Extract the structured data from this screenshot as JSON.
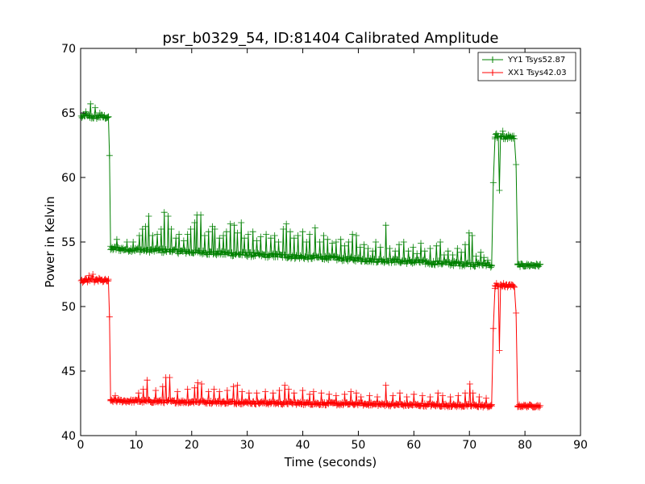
{
  "chart_data": {
    "type": "line",
    "title": "psr_b0329_54, ID:81404 Calibrated Amplitude",
    "xlabel": "Time (seconds)",
    "ylabel": "Power in Kelvin",
    "xlim": [
      0,
      90
    ],
    "ylim": [
      40,
      70
    ],
    "xticks": [
      "0",
      "10",
      "20",
      "30",
      "40",
      "50",
      "60",
      "70",
      "80",
      "90"
    ],
    "yticks": [
      "40",
      "45",
      "50",
      "55",
      "60",
      "65",
      "70"
    ],
    "grid": false,
    "legend_position": "top-right",
    "series": [
      {
        "name": "YY1 Tsys52.87",
        "color": "#008000",
        "segments": [
          {
            "x_start": 0.1,
            "x_end": 5.0,
            "base": 64.7,
            "noise": 0.18,
            "spikes": [
              [
                1.0,
                65.1
              ],
              [
                1.8,
                65.7
              ],
              [
                2.6,
                65.4
              ],
              [
                3.5,
                65.0
              ]
            ]
          },
          {
            "x": [
              5.0,
              5.2,
              5.4
            ],
            "y": [
              64.7,
              61.7,
              54.4
            ]
          },
          {
            "x_start": 5.4,
            "x_end": 74.0,
            "base_start": 54.5,
            "base_end": 53.2,
            "noise": 0.18,
            "spikes": [
              [
                6.5,
                55.2
              ],
              [
                8.3,
                55.0
              ],
              [
                9.5,
                55.0
              ],
              [
                10.6,
                55.5
              ],
              [
                11.1,
                56.0
              ],
              [
                11.7,
                56.2
              ],
              [
                12.2,
                57.0
              ],
              [
                13.0,
                55.5
              ],
              [
                13.8,
                55.6
              ],
              [
                14.5,
                56.0
              ],
              [
                15.1,
                57.3
              ],
              [
                15.7,
                57.0
              ],
              [
                16.3,
                56.0
              ],
              [
                17.1,
                55.3
              ],
              [
                17.7,
                55.6
              ],
              [
                18.5,
                55.1
              ],
              [
                19.2,
                55.6
              ],
              [
                19.8,
                56.0
              ],
              [
                20.5,
                56.5
              ],
              [
                21.0,
                57.1
              ],
              [
                21.6,
                57.1
              ],
              [
                22.3,
                55.5
              ],
              [
                23.0,
                55.8
              ],
              [
                23.7,
                56.2
              ],
              [
                24.2,
                56.0
              ],
              [
                25.0,
                55.3
              ],
              [
                25.7,
                55.5
              ],
              [
                26.3,
                55.8
              ],
              [
                27.0,
                56.4
              ],
              [
                27.6,
                56.3
              ],
              [
                28.2,
                55.7
              ],
              [
                28.9,
                56.5
              ],
              [
                29.5,
                55.3
              ],
              [
                30.2,
                55.6
              ],
              [
                31.0,
                55.8
              ],
              [
                31.7,
                55.1
              ],
              [
                32.4,
                55.4
              ],
              [
                33.4,
                55.6
              ],
              [
                34.2,
                55.3
              ],
              [
                34.9,
                55.5
              ],
              [
                35.7,
                55.0
              ],
              [
                36.5,
                56.0
              ],
              [
                37.0,
                56.4
              ],
              [
                37.7,
                55.8
              ],
              [
                38.4,
                55.3
              ],
              [
                39.2,
                55.5
              ],
              [
                40.0,
                55.8
              ],
              [
                40.7,
                55.0
              ],
              [
                41.3,
                55.6
              ],
              [
                42.2,
                56.1
              ],
              [
                43.0,
                55.0
              ],
              [
                43.7,
                55.5
              ],
              [
                44.5,
                55.2
              ],
              [
                45.3,
                54.9
              ],
              [
                46.0,
                55.0
              ],
              [
                46.8,
                55.2
              ],
              [
                47.6,
                54.7
              ],
              [
                48.2,
                55.0
              ],
              [
                48.9,
                55.6
              ],
              [
                49.7,
                55.5
              ],
              [
                50.4,
                54.6
              ],
              [
                51.0,
                54.8
              ],
              [
                51.8,
                54.5
              ],
              [
                52.6,
                54.3
              ],
              [
                53.2,
                55.0
              ],
              [
                54.0,
                54.6
              ],
              [
                55.0,
                56.3
              ],
              [
                55.7,
                54.5
              ],
              [
                56.6,
                54.3
              ],
              [
                57.4,
                54.8
              ],
              [
                58.2,
                55.0
              ],
              [
                59.0,
                54.3
              ],
              [
                59.8,
                54.6
              ],
              [
                60.6,
                54.1
              ],
              [
                61.3,
                54.9
              ],
              [
                62.0,
                54.3
              ],
              [
                63.0,
                54.5
              ],
              [
                64.0,
                54.7
              ],
              [
                64.8,
                55.0
              ],
              [
                65.4,
                54.0
              ],
              [
                66.2,
                54.3
              ],
              [
                67.0,
                54.0
              ],
              [
                67.8,
                54.5
              ],
              [
                68.5,
                54.2
              ],
              [
                69.2,
                54.8
              ],
              [
                70.0,
                55.7
              ],
              [
                70.5,
                55.5
              ],
              [
                71.2,
                53.9
              ],
              [
                72.0,
                54.2
              ],
              [
                72.6,
                53.8
              ],
              [
                73.3,
                53.6
              ]
            ]
          },
          {
            "x": [
              74.0,
              74.3,
              74.6
            ],
            "y": [
              53.2,
              59.6,
              63.0
            ]
          },
          {
            "x_start": 74.6,
            "x_end": 75.2,
            "base": 63.2,
            "noise": 0.2,
            "spikes": [
              [
                74.9,
                63.4
              ]
            ]
          },
          {
            "x": [
              75.2,
              75.4,
              75.6
            ],
            "y": [
              63.2,
              59.0,
              63.2
            ]
          },
          {
            "x_start": 75.6,
            "x_end": 78.1,
            "base": 63.1,
            "noise": 0.15,
            "spikes": [
              [
                76.0,
                63.6
              ],
              [
                77.0,
                63.3
              ]
            ]
          },
          {
            "x": [
              78.1,
              78.4,
              78.7
            ],
            "y": [
              63.0,
              61.0,
              53.3
            ]
          },
          {
            "x_start": 78.7,
            "x_end": 82.8,
            "base": 53.2,
            "noise": 0.12,
            "spikes": []
          }
        ]
      },
      {
        "name": "XX1 Tsys42.03",
        "color": "#ff0000",
        "segments": [
          {
            "x_start": 0.1,
            "x_end": 5.0,
            "base": 52.0,
            "noise": 0.15,
            "spikes": [
              [
                1.5,
                52.4
              ],
              [
                2.2,
                52.5
              ],
              [
                3.3,
                52.2
              ]
            ]
          },
          {
            "x": [
              5.0,
              5.2,
              5.4
            ],
            "y": [
              52.0,
              49.2,
              42.7
            ]
          },
          {
            "x_start": 5.4,
            "x_end": 74.0,
            "base_start": 42.7,
            "base_end": 42.3,
            "noise": 0.12,
            "spikes": [
              [
                6.2,
                43.1
              ],
              [
                10.5,
                43.3
              ],
              [
                11.3,
                43.6
              ],
              [
                12.0,
                44.3
              ],
              [
                13.5,
                43.5
              ],
              [
                14.8,
                43.8
              ],
              [
                15.3,
                44.5
              ],
              [
                16.0,
                44.5
              ],
              [
                17.4,
                43.4
              ],
              [
                19.3,
                43.6
              ],
              [
                20.5,
                43.7
              ],
              [
                21.1,
                44.1
              ],
              [
                21.8,
                44.0
              ],
              [
                23.0,
                43.4
              ],
              [
                24.0,
                43.6
              ],
              [
                25.0,
                43.4
              ],
              [
                26.4,
                43.5
              ],
              [
                27.5,
                43.8
              ],
              [
                28.2,
                43.9
              ],
              [
                29.0,
                43.4
              ],
              [
                30.3,
                43.3
              ],
              [
                31.7,
                43.3
              ],
              [
                33.3,
                43.4
              ],
              [
                34.6,
                43.3
              ],
              [
                35.8,
                43.5
              ],
              [
                36.8,
                43.9
              ],
              [
                37.5,
                43.6
              ],
              [
                38.5,
                43.3
              ],
              [
                40.0,
                43.5
              ],
              [
                41.2,
                43.2
              ],
              [
                42.0,
                43.4
              ],
              [
                43.4,
                43.3
              ],
              [
                44.8,
                43.2
              ],
              [
                46.0,
                43.1
              ],
              [
                47.5,
                43.2
              ],
              [
                48.7,
                43.4
              ],
              [
                49.6,
                43.3
              ],
              [
                50.5,
                43.0
              ],
              [
                52.0,
                43.1
              ],
              [
                53.4,
                43.0
              ],
              [
                55.0,
                43.9
              ],
              [
                56.2,
                43.1
              ],
              [
                57.5,
                43.3
              ],
              [
                58.8,
                43.0
              ],
              [
                60.0,
                43.2
              ],
              [
                61.5,
                43.1
              ],
              [
                63.0,
                43.0
              ],
              [
                64.4,
                43.3
              ],
              [
                65.2,
                43.1
              ],
              [
                66.6,
                43.0
              ],
              [
                68.0,
                43.1
              ],
              [
                69.2,
                43.3
              ],
              [
                70.1,
                44.0
              ],
              [
                70.6,
                43.3
              ],
              [
                71.8,
                43.0
              ],
              [
                73.0,
                42.9
              ]
            ]
          },
          {
            "x": [
              74.0,
              74.3,
              74.6
            ],
            "y": [
              42.3,
              48.3,
              51.4
            ]
          },
          {
            "x_start": 74.6,
            "x_end": 75.2,
            "base": 51.6,
            "noise": 0.15,
            "spikes": [
              [
                74.9,
                51.8
              ]
            ]
          },
          {
            "x": [
              75.2,
              75.4,
              75.6
            ],
            "y": [
              51.6,
              46.6,
              51.5
            ]
          },
          {
            "x_start": 75.6,
            "x_end": 78.1,
            "base": 51.6,
            "noise": 0.12,
            "spikes": [
              [
                76.2,
                51.8
              ]
            ]
          },
          {
            "x": [
              78.1,
              78.4,
              78.7
            ],
            "y": [
              51.5,
              49.5,
              42.3
            ]
          },
          {
            "x_start": 78.7,
            "x_end": 82.8,
            "base": 42.3,
            "noise": 0.1,
            "spikes": []
          }
        ]
      }
    ]
  }
}
